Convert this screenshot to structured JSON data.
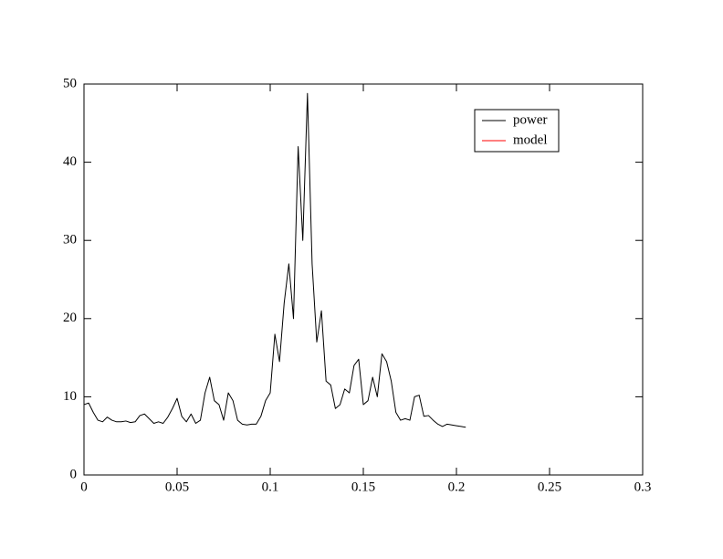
{
  "chart_data": {
    "type": "line",
    "x": [
      0,
      0.0025,
      0.005,
      0.0075,
      0.01,
      0.0125,
      0.015,
      0.0175,
      0.02,
      0.0225,
      0.025,
      0.0275,
      0.03,
      0.0325,
      0.035,
      0.0375,
      0.04,
      0.0425,
      0.045,
      0.0475,
      0.05,
      0.0525,
      0.055,
      0.0575,
      0.06,
      0.0625,
      0.065,
      0.0675,
      0.07,
      0.0725,
      0.075,
      0.0775,
      0.08,
      0.0825,
      0.085,
      0.0875,
      0.09,
      0.0925,
      0.095,
      0.0975,
      0.1,
      0.1025,
      0.105,
      0.1075,
      0.11,
      0.1125,
      0.115,
      0.1175,
      0.12,
      0.1225,
      0.125,
      0.1275,
      0.13,
      0.1325,
      0.135,
      0.1375,
      0.14,
      0.1425,
      0.145,
      0.1475,
      0.15,
      0.1525,
      0.155,
      0.1575,
      0.16,
      0.1625,
      0.165,
      0.1675,
      0.17,
      0.1725,
      0.175,
      0.1775,
      0.18,
      0.1825,
      0.185,
      0.1875,
      0.19,
      0.1925,
      0.195,
      0.1975,
      0.2,
      0.2025,
      0.205
    ],
    "series": [
      {
        "name": "power",
        "color": "#000000",
        "values": [
          9.0,
          9.2,
          8.0,
          7.0,
          6.8,
          7.4,
          7.0,
          6.8,
          6.8,
          6.9,
          6.7,
          6.8,
          7.6,
          7.8,
          7.2,
          6.6,
          6.8,
          6.6,
          7.4,
          8.5,
          9.8,
          7.5,
          6.8,
          7.8,
          6.6,
          7.0,
          10.5,
          12.5,
          9.5,
          9.0,
          7.0,
          10.5,
          9.5,
          7.0,
          6.5,
          6.4,
          6.5,
          6.5,
          7.5,
          9.5,
          10.5,
          18.0,
          14.5,
          22.0,
          27.0,
          20.0,
          42.0,
          30.0,
          48.8,
          27.0,
          17.0,
          21.0,
          12.0,
          11.5,
          8.5,
          9.0,
          11.0,
          10.5,
          14.0,
          14.8,
          9.0,
          9.5,
          12.5,
          10.0,
          15.5,
          14.5,
          12.0,
          8.0,
          7.0,
          7.2,
          7.0,
          10.0,
          10.2,
          7.5,
          7.6,
          7.0,
          6.5,
          6.2,
          6.5,
          6.4,
          6.3,
          6.2,
          6.1
        ]
      },
      {
        "name": "model",
        "color": "#ff0000",
        "values": [
          null,
          null,
          null,
          null,
          null,
          null,
          null,
          null,
          null,
          null,
          null,
          null,
          null,
          null,
          null,
          null,
          null,
          null,
          null,
          null,
          null,
          null,
          null,
          null,
          null,
          null,
          null,
          null,
          null,
          null,
          null,
          null,
          null,
          null,
          null,
          null,
          null,
          null,
          null,
          null,
          null,
          null,
          null,
          null,
          null,
          null,
          null,
          null,
          null,
          null,
          null,
          null,
          null,
          null,
          null,
          null,
          null,
          null,
          null,
          null,
          null,
          null,
          null,
          null,
          null,
          null,
          null,
          null,
          null,
          null,
          null,
          null,
          null,
          null,
          null,
          null,
          null,
          null,
          null,
          null,
          null,
          null,
          null
        ]
      }
    ],
    "xlim": [
      0,
      0.3
    ],
    "xticks": [
      0,
      0.05,
      0.1,
      0.15,
      0.2,
      0.25,
      0.3
    ],
    "ylim": [
      0,
      50
    ],
    "yticks": [
      0,
      10,
      20,
      30,
      40,
      50
    ],
    "legend": "upper right"
  }
}
